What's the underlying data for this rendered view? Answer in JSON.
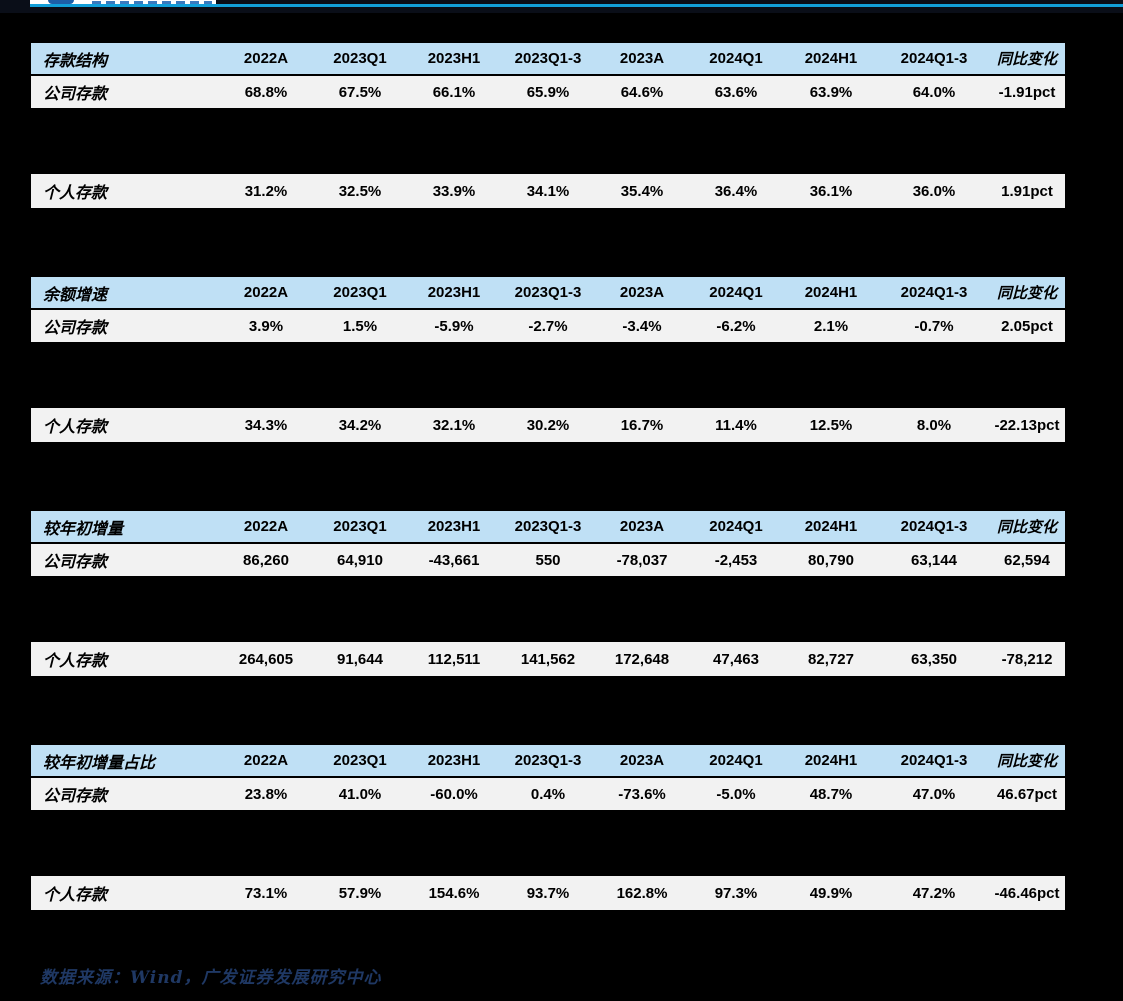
{
  "page": {
    "source_note": "数据来源：Wind，广发证券发展研究中心"
  },
  "columns": [
    "2022A",
    "2023Q1",
    "2023H1",
    "2023Q1-3",
    "2023A",
    "2024Q1",
    "2024H1",
    "2024Q1-3",
    "同比变化"
  ],
  "tables": [
    {
      "title": "存款结构",
      "rows": [
        {
          "label": "公司存款",
          "values": [
            "68.8%",
            "67.5%",
            "66.1%",
            "65.9%",
            "64.6%",
            "63.6%",
            "63.9%",
            "64.0%",
            "-1.91pct"
          ]
        },
        {
          "label": "个人存款",
          "values": [
            "31.2%",
            "32.5%",
            "33.9%",
            "34.1%",
            "35.4%",
            "36.4%",
            "36.1%",
            "36.0%",
            "1.91pct"
          ]
        }
      ]
    },
    {
      "title": "余额增速",
      "rows": [
        {
          "label": "公司存款",
          "values": [
            "3.9%",
            "1.5%",
            "-5.9%",
            "-2.7%",
            "-3.4%",
            "-6.2%",
            "2.1%",
            "-0.7%",
            "2.05pct"
          ]
        },
        {
          "label": "个人存款",
          "values": [
            "34.3%",
            "34.2%",
            "32.1%",
            "30.2%",
            "16.7%",
            "11.4%",
            "12.5%",
            "8.0%",
            "-22.13pct"
          ]
        }
      ]
    },
    {
      "title": "较年初增量",
      "rows": [
        {
          "label": "公司存款",
          "values": [
            "86,260",
            "64,910",
            "-43,661",
            "550",
            "-78,037",
            "-2,453",
            "80,790",
            "63,144",
            "62,594"
          ]
        },
        {
          "label": "个人存款",
          "values": [
            "264,605",
            "91,644",
            "112,511",
            "141,562",
            "172,648",
            "47,463",
            "82,727",
            "63,350",
            "-78,212"
          ]
        }
      ]
    },
    {
      "title": "较年初增量占比",
      "rows": [
        {
          "label": "公司存款",
          "values": [
            "23.8%",
            "41.0%",
            "-60.0%",
            "0.4%",
            "-73.6%",
            "-5.0%",
            "48.7%",
            "47.0%",
            "46.67pct"
          ]
        },
        {
          "label": "个人存款",
          "values": [
            "73.1%",
            "57.9%",
            "154.6%",
            "93.7%",
            "162.8%",
            "97.3%",
            "49.9%",
            "47.2%",
            "-46.46pct"
          ]
        }
      ]
    }
  ],
  "colors": {
    "accent_cyan": "#129fd9",
    "table_header_bg": "#bfe0f5",
    "table_row_bg": "#f2f2f2",
    "page_bg": "#000000",
    "source_text": "#1f3864"
  }
}
